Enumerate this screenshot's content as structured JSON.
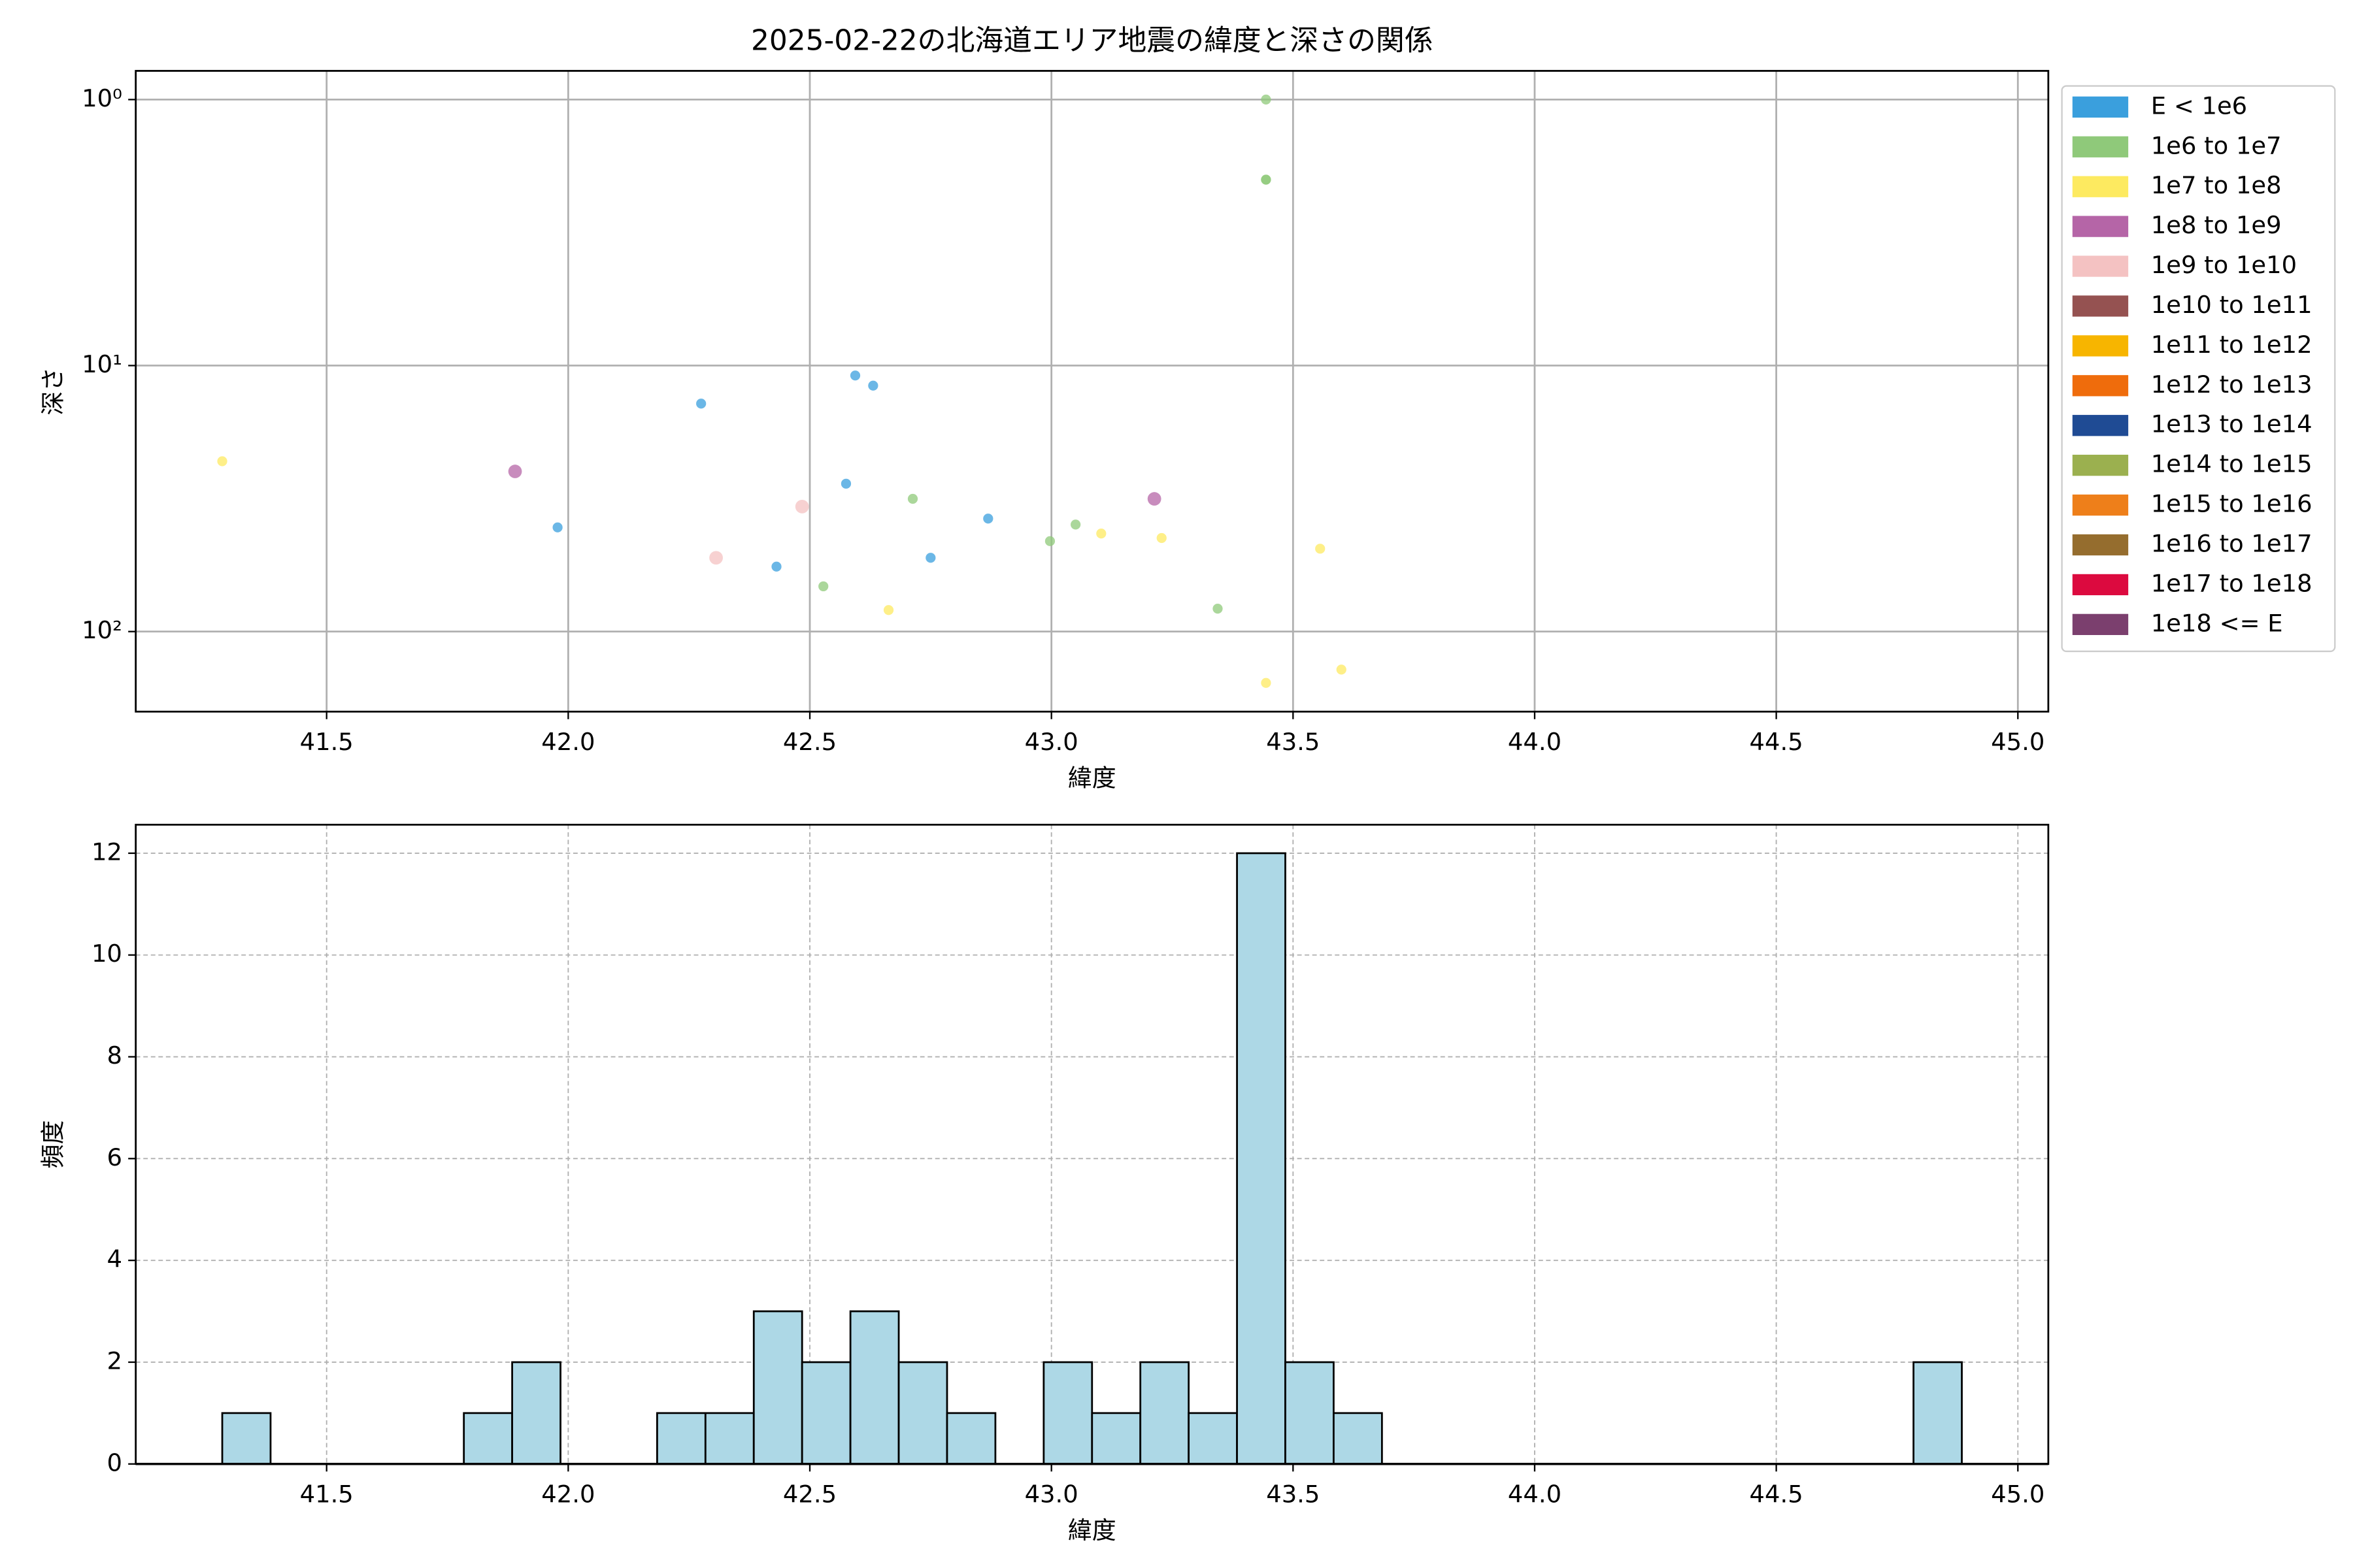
{
  "chart_data": [
    {
      "type": "scatter",
      "title": "2025-02-22の北海道エリア地震の緯度と深さの関係",
      "xlabel": "緯度",
      "ylabel": "深さ",
      "xlim": [
        41.105,
        45.063
      ],
      "xticks": [
        41.5,
        {
          "value": 42,
          "label": "42.0"
        },
        42.5,
        {
          "value": 43,
          "label": "43.0"
        },
        43.5,
        {
          "value": 44,
          "label": "44.0"
        },
        44.5,
        {
          "value": 45,
          "label": "45.0"
        }
      ],
      "ylim": [
        0.78,
        200
      ],
      "y_log": true,
      "y_inverted": true,
      "yticks": [
        {
          "value": 1,
          "label": "10⁰"
        },
        {
          "value": 10,
          "label": "10¹"
        },
        {
          "value": 100,
          "label": "10²"
        }
      ],
      "grid": "solid",
      "legend": "outside-right",
      "series": [
        {
          "name": "E < 1e6",
          "color": "#3a9fdd",
          "x": [
            41.978,
            42.275,
            42.431,
            42.575,
            42.594,
            42.631,
            42.75,
            42.869
          ],
          "values": [
            40.6,
            13.9,
            57,
            27.8,
            10.9,
            11.9,
            52.8,
            37.6
          ]
        },
        {
          "name": "1e6 to 1e7",
          "color": "#8fc97a",
          "x": [
            42.528,
            42.713,
            42.997,
            43.05,
            43.344,
            43.444,
            43.444,
            43.444
          ],
          "values": [
            67.6,
            31.7,
            45.7,
            39.6,
            82,
            1,
            2,
            2
          ]
        },
        {
          "name": "1e7 to 1e8",
          "color": "#fdea60",
          "x": [
            41.284,
            42.663,
            43.103,
            43.228,
            43.444,
            43.556,
            43.6
          ],
          "values": [
            22.9,
            83,
            42.8,
            44.5,
            156,
            48.8,
            139
          ]
        },
        {
          "name": "1e8 to 1e9",
          "color": "#b565a7",
          "x": [
            41.89,
            43.213
          ],
          "values": [
            25,
            31.7
          ]
        },
        {
          "name": "1e9 to 1e10",
          "color": "#f4c2c2",
          "x": [
            42.306,
            42.484
          ],
          "values": [
            52.8,
            33.9
          ]
        },
        {
          "name": "1e10 to 1e11",
          "color": "#955251",
          "x": [],
          "values": []
        },
        {
          "name": "1e11 to 1e12",
          "color": "#f7b500",
          "x": [],
          "values": []
        },
        {
          "name": "1e12 to 1e13",
          "color": "#ef6c0c",
          "x": [],
          "values": []
        },
        {
          "name": "1e13 to 1e14",
          "color": "#1f4b94",
          "x": [],
          "values": []
        },
        {
          "name": "1e14 to 1e15",
          "color": "#9bb04f",
          "x": [],
          "values": []
        },
        {
          "name": "1e15 to 1e16",
          "color": "#ee7f1a",
          "x": [],
          "values": []
        },
        {
          "name": "1e16 to 1e17",
          "color": "#956d2e",
          "x": [],
          "values": []
        },
        {
          "name": "1e17 to 1e18",
          "color": "#dc0a3f",
          "x": [],
          "values": []
        },
        {
          "name": "1e18 <= E",
          "color": "#7b3f6e",
          "x": [],
          "values": []
        }
      ]
    },
    {
      "type": "histogram",
      "xlabel": "緯度",
      "ylabel": "頻度",
      "color": "#add8e6",
      "xlim": [
        41.105,
        45.063
      ],
      "xticks": [
        41.5,
        {
          "value": 42,
          "label": "42.0"
        },
        42.5,
        {
          "value": 43,
          "label": "43.0"
        },
        43.5,
        {
          "value": 44,
          "label": "44.0"
        },
        44.5,
        {
          "value": 45,
          "label": "45.0"
        }
      ],
      "ylim": [
        0,
        12.56
      ],
      "yticks": [
        0,
        2,
        4,
        6,
        8,
        10,
        12
      ],
      "grid": "dashed",
      "bins": [
        41.284,
        41.384,
        41.484,
        41.584,
        41.684,
        41.784,
        41.884,
        41.984,
        42.084,
        42.184,
        42.284,
        42.384,
        42.484,
        42.584,
        42.684,
        42.784,
        42.884,
        42.984,
        43.084,
        43.184,
        43.284,
        43.384,
        43.484,
        43.584,
        43.684,
        43.784,
        43.884,
        43.984,
        44.084,
        44.184,
        44.284,
        44.384,
        44.484,
        44.584,
        44.684,
        44.784,
        44.884
      ],
      "values": [
        1,
        0,
        0,
        0,
        0,
        1,
        2,
        0,
        0,
        1,
        1,
        3,
        2,
        3,
        2,
        1,
        0,
        2,
        1,
        2,
        1,
        12,
        2,
        1,
        0,
        0,
        0,
        0,
        0,
        0,
        0,
        0,
        0,
        0,
        0,
        2
      ]
    }
  ]
}
